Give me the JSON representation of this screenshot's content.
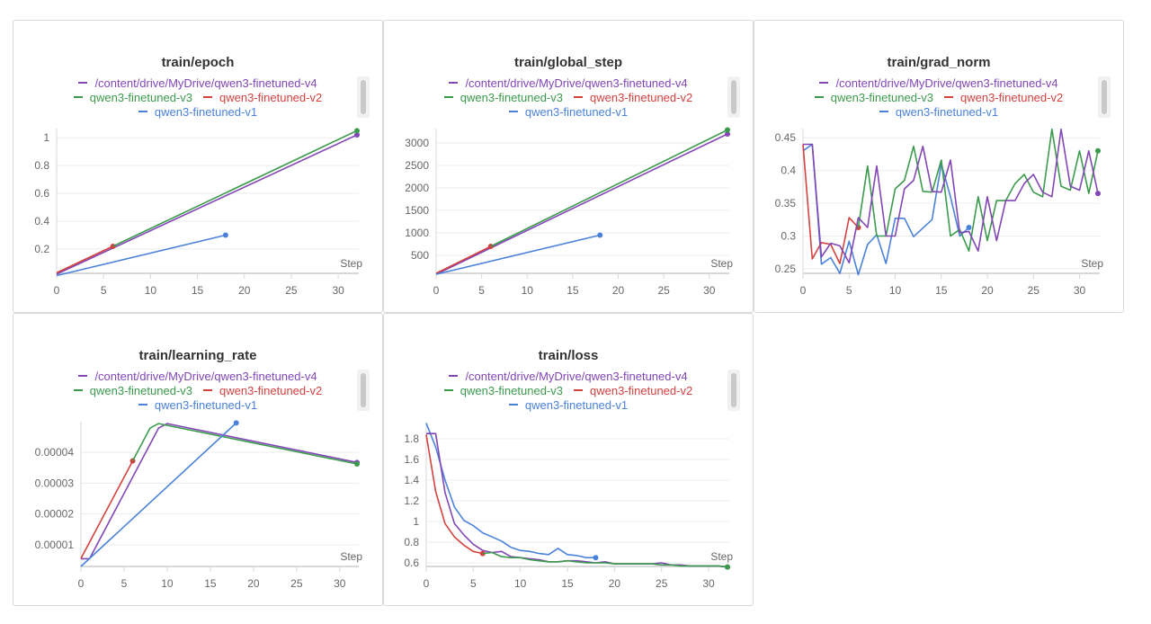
{
  "colors": {
    "v4": "#8246b6",
    "v3": "#3b9a4c",
    "v2": "#d3423f",
    "v1": "#4a82da",
    "grid": "#ececec",
    "axis": "#d8d8d8"
  },
  "series_names": {
    "v4": "/content/drive/MyDrive/qwen3-finetuned-v4",
    "v3": "qwen3-finetuned-v3",
    "v2": "qwen3-finetuned-v2",
    "v1": "qwen3-finetuned-v1"
  },
  "legend_rows": [
    [
      "v4"
    ],
    [
      "v3",
      "v2"
    ],
    [
      "v1"
    ]
  ],
  "chart_data": [
    {
      "type": "line",
      "title": "train/epoch",
      "xlabel": "Step",
      "xlim": [
        0,
        32
      ],
      "ylim": [
        0.026,
        1.065
      ],
      "xticks": [
        0,
        5,
        10,
        15,
        20,
        25,
        30
      ],
      "yticks": [
        0.2,
        0.4,
        0.6,
        0.8,
        1
      ],
      "ytick_labels": [
        "0.2",
        "0.4",
        "0.6",
        "0.8",
        "1"
      ],
      "series": [
        {
          "key": "v4",
          "x": [
            0,
            32
          ],
          "y": [
            0.02,
            1.02
          ]
        },
        {
          "key": "v2",
          "x": [
            0,
            6
          ],
          "y": [
            0.03,
            0.22
          ]
        },
        {
          "key": "v3",
          "x": [
            6,
            32
          ],
          "y": [
            0.22,
            1.05
          ]
        },
        {
          "key": "v1",
          "x": [
            0,
            18
          ],
          "y": [
            0.01,
            0.3
          ]
        }
      ]
    },
    {
      "type": "line",
      "title": "train/global_step",
      "xlabel": "Step",
      "xlim": [
        0,
        32
      ],
      "ylim": [
        100,
        3320
      ],
      "xticks": [
        0,
        5,
        10,
        15,
        20,
        25,
        30
      ],
      "yticks": [
        500,
        1000,
        1500,
        2000,
        2500,
        3000
      ],
      "ytick_labels": [
        "500",
        "1000",
        "1500",
        "2000",
        "2500",
        "3000"
      ],
      "series": [
        {
          "key": "v4",
          "x": [
            0,
            32
          ],
          "y": [
            80,
            3200
          ]
        },
        {
          "key": "v2",
          "x": [
            0,
            6
          ],
          "y": [
            100,
            700
          ]
        },
        {
          "key": "v3",
          "x": [
            6,
            32
          ],
          "y": [
            700,
            3290
          ]
        },
        {
          "key": "v1",
          "x": [
            0,
            18
          ],
          "y": [
            80,
            950
          ]
        }
      ]
    },
    {
      "type": "line",
      "title": "train/grad_norm",
      "xlabel": "Step",
      "xlim": [
        0,
        32
      ],
      "ylim": [
        0.243,
        0.464
      ],
      "xticks": [
        0,
        5,
        10,
        15,
        20,
        25,
        30
      ],
      "yticks": [
        0.25,
        0.3,
        0.35,
        0.4,
        0.45
      ],
      "ytick_labels": [
        "0.25",
        "0.3",
        "0.35",
        "0.4",
        "0.45"
      ],
      "series": [
        {
          "key": "v1",
          "x": [
            0,
            1,
            2,
            3,
            4,
            5,
            6,
            7,
            8,
            9,
            10,
            11,
            12,
            13,
            14,
            15,
            16,
            17,
            18
          ],
          "y": [
            0.43,
            0.44,
            0.257,
            0.267,
            0.243,
            0.292,
            0.241,
            0.287,
            0.302,
            0.258,
            0.327,
            0.327,
            0.299,
            0.312,
            0.325,
            0.41,
            0.36,
            0.3,
            0.313
          ]
        },
        {
          "key": "v2",
          "x": [
            0,
            1,
            2,
            3,
            4,
            5,
            6
          ],
          "y": [
            0.44,
            0.265,
            0.29,
            0.287,
            0.258,
            0.328,
            0.313
          ]
        },
        {
          "key": "v3",
          "x": [
            6,
            7,
            8,
            9,
            10,
            11,
            12,
            13,
            14,
            15,
            16,
            17,
            18,
            19,
            20,
            21,
            22,
            23,
            24,
            25,
            26,
            27,
            28,
            29,
            30,
            31,
            32
          ],
          "y": [
            0.313,
            0.407,
            0.3,
            0.3,
            0.372,
            0.385,
            0.437,
            0.368,
            0.367,
            0.416,
            0.3,
            0.31,
            0.277,
            0.36,
            0.293,
            0.354,
            0.354,
            0.38,
            0.394,
            0.367,
            0.36,
            0.463,
            0.376,
            0.37,
            0.43,
            0.365,
            0.43
          ]
        },
        {
          "key": "v4",
          "x": [
            0,
            1,
            2,
            3,
            4,
            5,
            6,
            7,
            8,
            9,
            10,
            11,
            12,
            13,
            14,
            15,
            16,
            17,
            18,
            19,
            20,
            21,
            22,
            23,
            24,
            25,
            26,
            27,
            28,
            29,
            30,
            31,
            32
          ],
          "y": [
            0.44,
            0.44,
            0.268,
            0.289,
            0.285,
            0.259,
            0.328,
            0.313,
            0.407,
            0.3,
            0.3,
            0.372,
            0.385,
            0.437,
            0.368,
            0.367,
            0.416,
            0.305,
            0.307,
            0.277,
            0.36,
            0.293,
            0.354,
            0.354,
            0.38,
            0.394,
            0.367,
            0.36,
            0.463,
            0.376,
            0.37,
            0.43,
            0.365
          ]
        }
      ]
    },
    {
      "type": "line",
      "title": "train/learning_rate",
      "xlabel": "Step",
      "xlim": [
        0,
        32
      ],
      "ylim": [
        3e-06,
        4.99e-05
      ],
      "xticks": [
        0,
        5,
        10,
        15,
        20,
        25,
        30
      ],
      "yticks": [
        1e-05,
        2e-05,
        3e-05,
        4e-05
      ],
      "ytick_labels": [
        "0.00001",
        "0.00002",
        "0.00003",
        "0.00004"
      ],
      "series": [
        {
          "key": "v4",
          "x": [
            0,
            1,
            9,
            10,
            32
          ],
          "y": [
            5.5e-06,
            5.5e-06,
            4.78e-05,
            4.93e-05,
            3.67e-05
          ]
        },
        {
          "key": "v2",
          "x": [
            0,
            6
          ],
          "y": [
            5.6e-06,
            3.72e-05
          ]
        },
        {
          "key": "v3",
          "x": [
            6,
            8,
            9,
            32
          ],
          "y": [
            3.72e-05,
            4.78e-05,
            4.93e-05,
            3.62e-05
          ]
        },
        {
          "key": "v1",
          "x": [
            0,
            18
          ],
          "y": [
            3e-06,
            4.95e-05
          ]
        }
      ]
    },
    {
      "type": "line",
      "title": "train/loss",
      "xlabel": "Step",
      "xlim": [
        0,
        32
      ],
      "ylim": [
        0.565,
        1.965
      ],
      "xticks": [
        0,
        5,
        10,
        15,
        20,
        25,
        30
      ],
      "yticks": [
        0.6,
        0.8,
        1,
        1.2,
        1.4,
        1.6,
        1.8
      ],
      "ytick_labels": [
        "0.6",
        "0.8",
        "1",
        "1.2",
        "1.4",
        "1.6",
        "1.8"
      ],
      "series": [
        {
          "key": "v1",
          "x": [
            0,
            1,
            2,
            3,
            4,
            5,
            6,
            7,
            8,
            9,
            10,
            11,
            12,
            13,
            14,
            15,
            16,
            17,
            18
          ],
          "y": [
            1.95,
            1.72,
            1.4,
            1.14,
            1.01,
            0.96,
            0.89,
            0.85,
            0.81,
            0.75,
            0.72,
            0.71,
            0.69,
            0.68,
            0.74,
            0.68,
            0.67,
            0.65,
            0.65
          ]
        },
        {
          "key": "v4",
          "x": [
            0,
            1,
            2,
            3,
            4,
            5,
            6,
            7,
            8,
            9,
            10,
            11,
            12,
            13,
            14,
            15,
            16,
            17,
            18,
            19,
            20,
            21,
            22,
            23,
            24,
            25,
            26,
            27,
            28,
            29,
            30,
            31,
            32
          ],
          "y": [
            1.85,
            1.85,
            1.28,
            0.98,
            0.87,
            0.78,
            0.72,
            0.7,
            0.71,
            0.66,
            0.65,
            0.64,
            0.63,
            0.61,
            0.61,
            0.62,
            0.62,
            0.61,
            0.6,
            0.61,
            0.59,
            0.59,
            0.59,
            0.59,
            0.59,
            0.6,
            0.58,
            0.58,
            0.57,
            0.57,
            0.57,
            0.57,
            0.56
          ]
        },
        {
          "key": "v2",
          "x": [
            0,
            1,
            2,
            3,
            4,
            5,
            6
          ],
          "y": [
            1.84,
            1.29,
            0.98,
            0.85,
            0.77,
            0.71,
            0.69
          ]
        },
        {
          "key": "v3",
          "x": [
            6,
            7,
            8,
            9,
            10,
            11,
            12,
            13,
            14,
            15,
            16,
            17,
            18,
            19,
            20,
            21,
            22,
            23,
            24,
            25,
            26,
            27,
            28,
            29,
            30,
            31,
            32
          ],
          "y": [
            0.69,
            0.7,
            0.66,
            0.65,
            0.65,
            0.63,
            0.62,
            0.61,
            0.61,
            0.62,
            0.61,
            0.6,
            0.6,
            0.6,
            0.59,
            0.59,
            0.59,
            0.59,
            0.59,
            0.58,
            0.58,
            0.57,
            0.57,
            0.57,
            0.57,
            0.57,
            0.56
          ]
        }
      ]
    }
  ]
}
